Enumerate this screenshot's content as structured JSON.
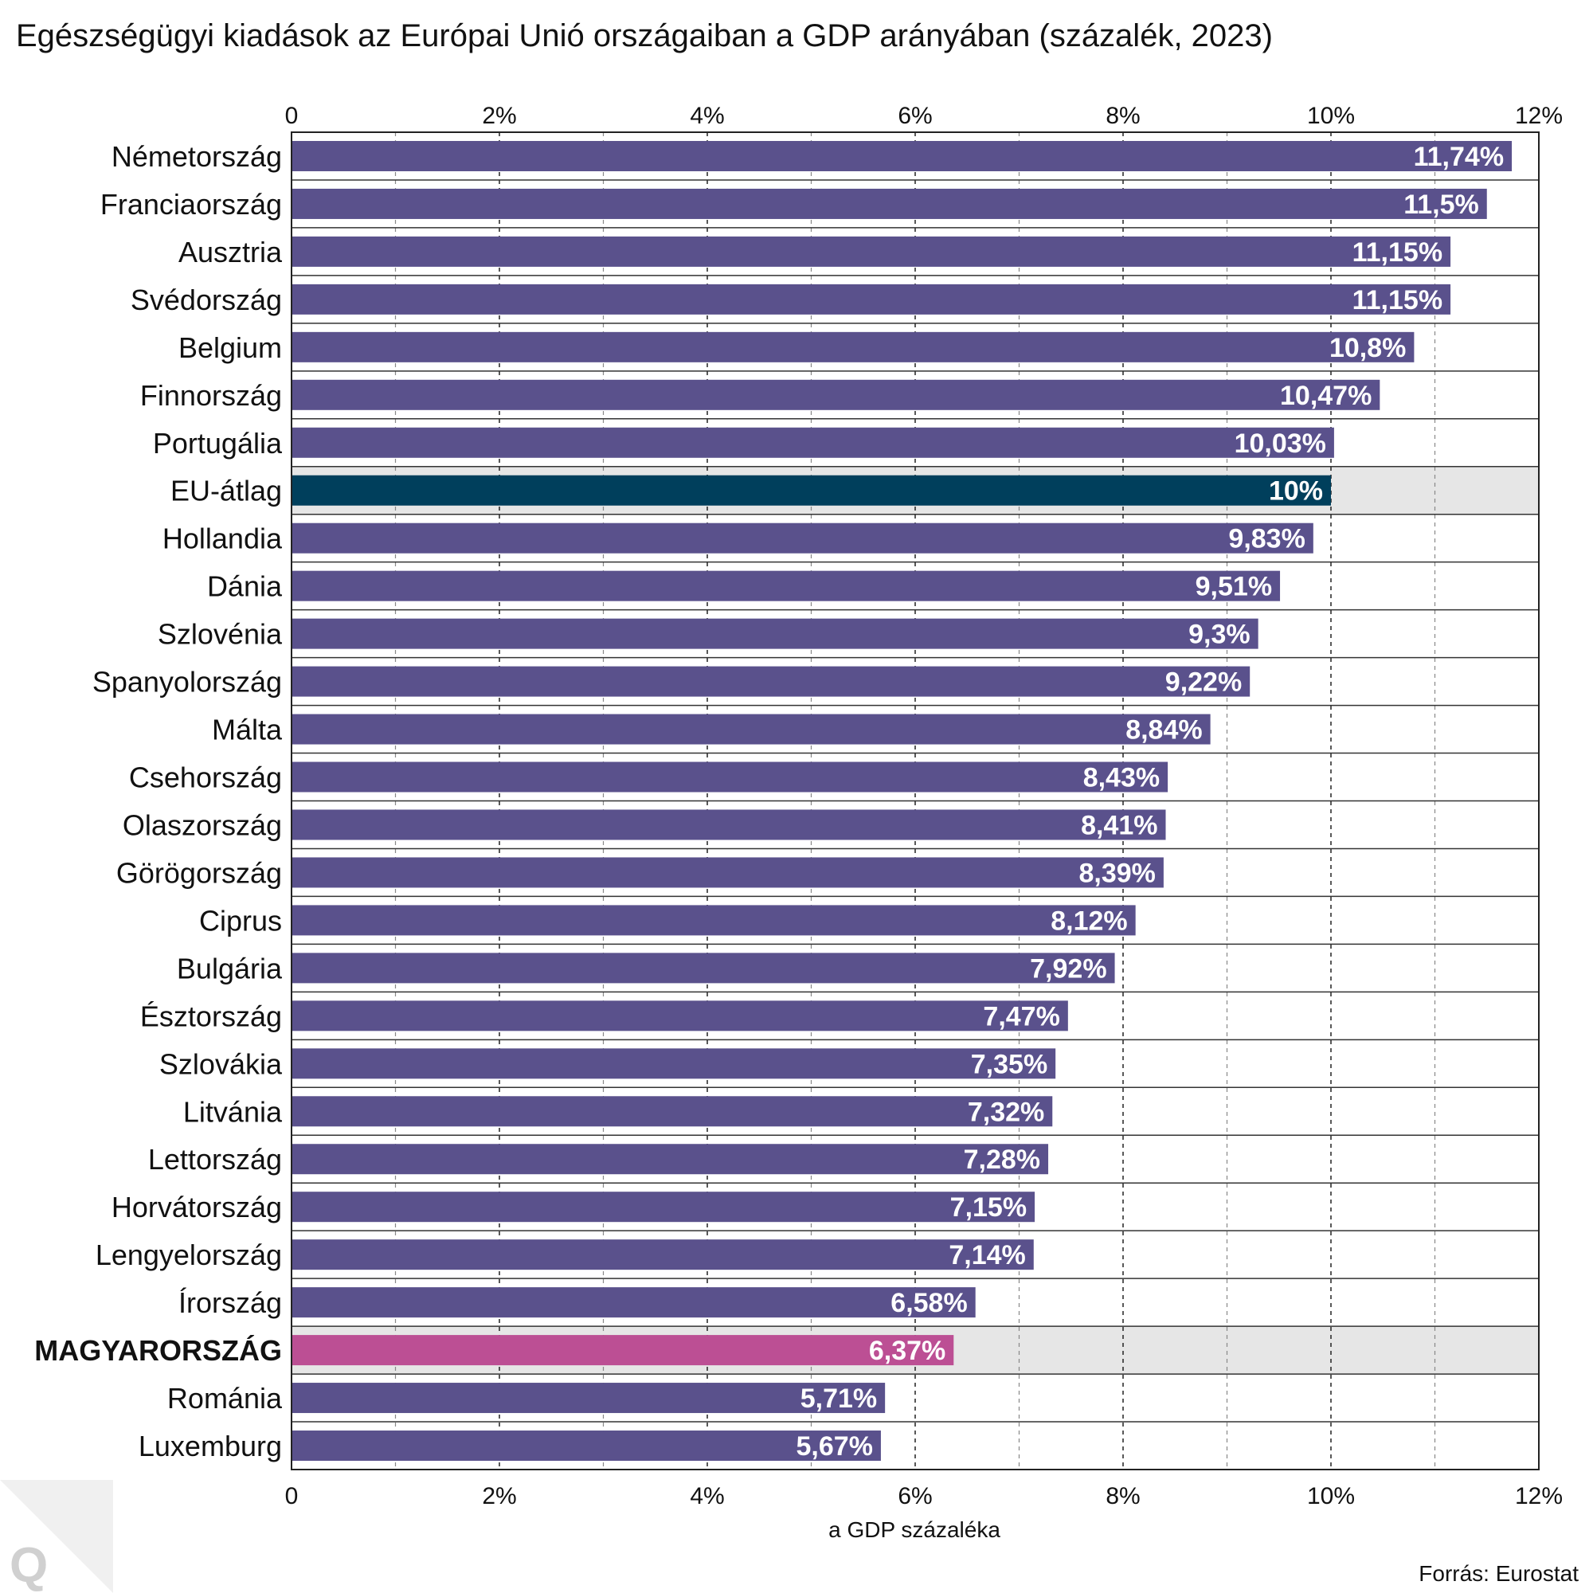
{
  "chart_data": {
    "type": "bar",
    "orientation": "horizontal",
    "title": "Egészségügyi kiadások az Európai Unió országaiban a GDP arányában (százalék, 2023)",
    "xlabel": "a GDP százaléka",
    "source": "Forrás: Eurostat",
    "xlim": [
      0,
      12
    ],
    "ticks": [
      0,
      2,
      4,
      6,
      8,
      10,
      12
    ],
    "tick_labels": [
      "0",
      "2%",
      "4%",
      "6%",
      "8%",
      "10%",
      "12%"
    ],
    "grid": true,
    "categories": [
      "Németország",
      "Franciaország",
      "Ausztria",
      "Svédország",
      "Belgium",
      "Finnország",
      "Portugália",
      "EU-átlag",
      "Hollandia",
      "Dánia",
      "Szlovénia",
      "Spanyolország",
      "Málta",
      "Csehország",
      "Olaszország",
      "Görögország",
      "Ciprus",
      "Bulgária",
      "Észtország",
      "Szlovákia",
      "Litvánia",
      "Lettország",
      "Horvátország",
      "Lengyelország",
      "Írország",
      "MAGYARORSZÁG",
      "Románia",
      "Luxemburg"
    ],
    "values": [
      11.74,
      11.5,
      11.15,
      11.15,
      10.8,
      10.47,
      10.03,
      10,
      9.83,
      9.51,
      9.3,
      9.22,
      8.84,
      8.43,
      8.41,
      8.39,
      8.12,
      7.92,
      7.47,
      7.35,
      7.32,
      7.28,
      7.15,
      7.14,
      6.58,
      6.37,
      5.71,
      5.67
    ],
    "value_labels": [
      "11,74%",
      "11,5%",
      "11,15%",
      "11,15%",
      "10,8%",
      "10,47%",
      "10,03%",
      "10%",
      "9,83%",
      "9,51%",
      "9,3%",
      "9,22%",
      "8,84%",
      "8,43%",
      "8,41%",
      "8,39%",
      "8,12%",
      "7,92%",
      "7,47%",
      "7,35%",
      "7,32%",
      "7,28%",
      "7,15%",
      "7,14%",
      "6,58%",
      "6,37%",
      "5,71%",
      "5,67%"
    ],
    "highlight": {
      "EU-átlag": "#003f5c",
      "MAGYARORSZÁG": "#bc4f94"
    },
    "default_color": "#5a518c",
    "highlight_row_background": "#e6e6e6"
  },
  "logo": "Q"
}
